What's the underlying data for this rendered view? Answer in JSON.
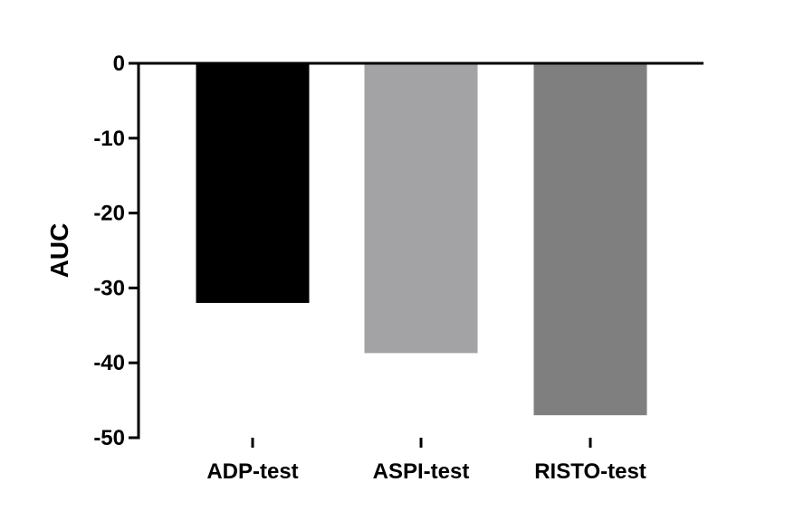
{
  "chart_data": {
    "type": "bar",
    "title": "",
    "xlabel": "",
    "ylabel": "AUC",
    "categories": [
      "ADP-test",
      "ASPI-test",
      "RISTO-test"
    ],
    "values": [
      -32,
      -38.7,
      -47
    ],
    "ylim": [
      -50,
      0
    ],
    "yticks": [
      0,
      -10,
      -20,
      -30,
      -40,
      -50
    ],
    "ytick_labels": [
      "0",
      "-10",
      "-20",
      "-30",
      "-40",
      "-50"
    ],
    "grid": false,
    "legend": "none",
    "bar_colors": [
      "#000000",
      "#a3a3a6",
      "#7f7f7f"
    ]
  }
}
